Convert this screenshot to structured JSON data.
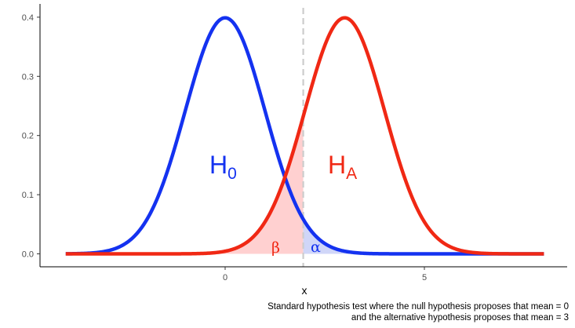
{
  "chart_data": {
    "type": "line",
    "title": "",
    "xlabel": "x",
    "ylabel": "",
    "xlim": [
      -4,
      8
    ],
    "ylim": [
      0,
      0.4
    ],
    "x_ticks": [
      0,
      5
    ],
    "x_tick_labels": [
      "0",
      "5"
    ],
    "y_ticks": [
      0.0,
      0.1,
      0.2,
      0.3,
      0.4
    ],
    "y_tick_labels": [
      "0.0",
      "0.1",
      "0.2",
      "0.3",
      "0.4"
    ],
    "grid": false,
    "critical_value": 1.96,
    "series": [
      {
        "label": "H",
        "subscript": "0",
        "mean": 0,
        "sd": 1,
        "color": "#1432f0"
      },
      {
        "label": "H",
        "subscript": "A",
        "mean": 3,
        "sd": 1,
        "color": "#f02814"
      }
    ],
    "shaded_regions": [
      {
        "label": "β",
        "description": "area under H_A left of critical value",
        "color": "#ffd0d0",
        "text_color": "#f02814"
      },
      {
        "label": "α",
        "description": "area under H_0 right of critical value",
        "color": "#d0d6f8",
        "text_color": "#1432f0"
      }
    ],
    "caption_lines": [
      "Standard hypothesis test where the null hypothesis proposes that mean = 0",
      "and the alternative hypothesis proposes that mean = 3"
    ]
  }
}
